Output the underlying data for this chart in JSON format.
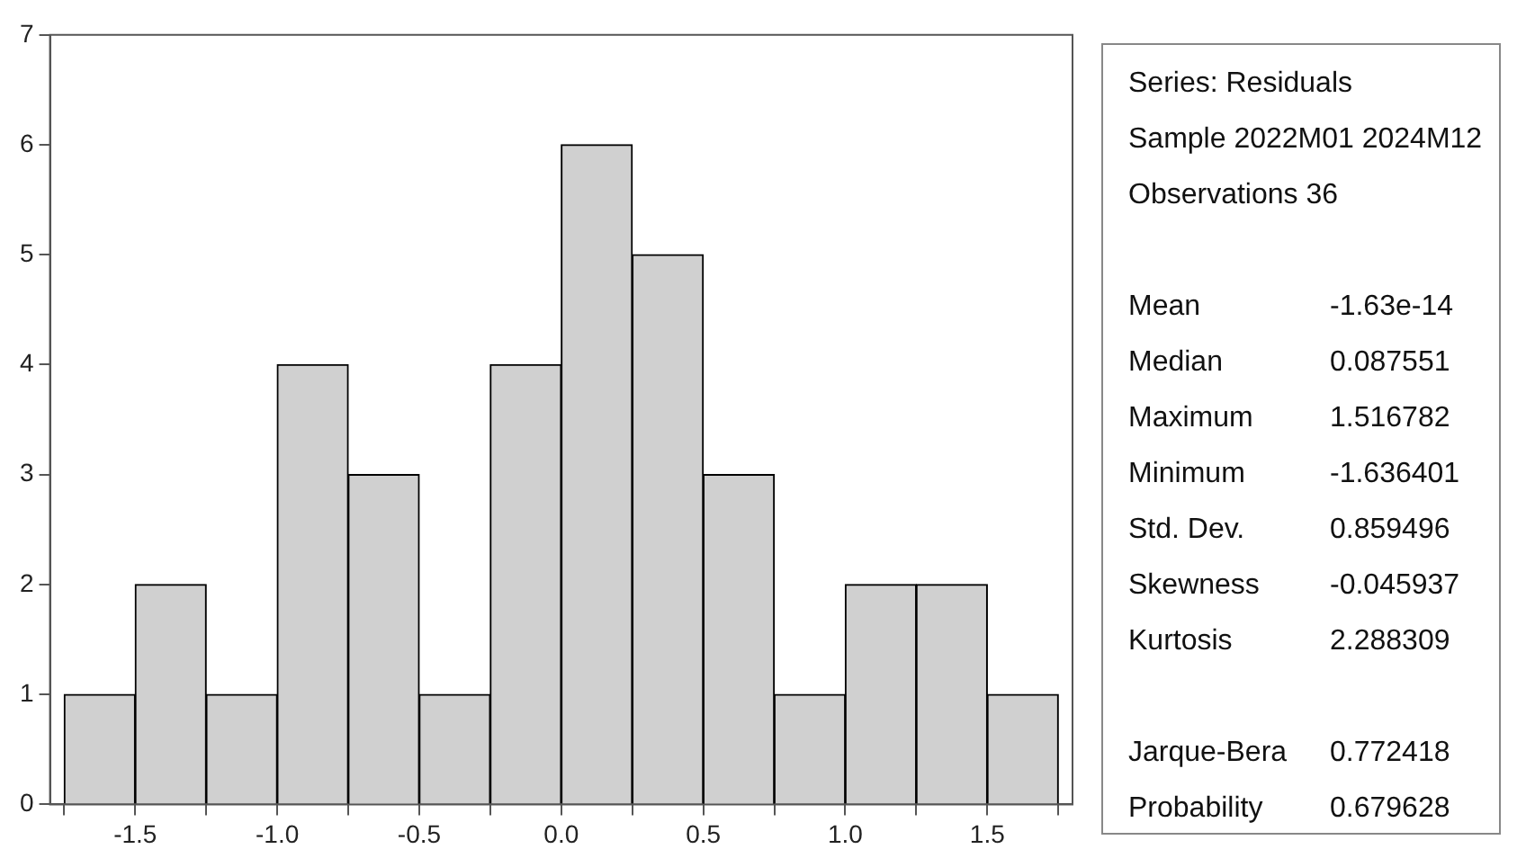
{
  "chart_data": {
    "type": "histogram",
    "bins": [
      -1.75,
      -1.5,
      -1.25,
      -1.0,
      -0.75,
      -0.5,
      -0.25,
      0.0,
      0.25,
      0.5,
      0.75,
      1.0,
      1.25,
      1.5,
      1.75
    ],
    "values": [
      1,
      2,
      1,
      4,
      3,
      1,
      4,
      6,
      5,
      3,
      1,
      2,
      2,
      1
    ],
    "color": "#d0d0d0",
    "xlim": [
      -1.8,
      1.8
    ],
    "xticks": [
      {
        "value": -1.75,
        "label": null
      },
      -1.5,
      {
        "value": -1.25,
        "label": null
      },
      {
        "value": -1.0,
        "label": "-1.0"
      },
      {
        "value": -0.75,
        "label": null
      },
      -0.5,
      {
        "value": -0.25,
        "label": null
      },
      {
        "value": 0.0,
        "label": "0.0"
      },
      {
        "value": 0.25,
        "label": null
      },
      0.5,
      {
        "value": 0.75,
        "label": null
      },
      {
        "value": 1.0,
        "label": "1.0"
      },
      {
        "value": 1.25,
        "label": null
      },
      1.5,
      {
        "value": 1.75,
        "label": null
      }
    ],
    "ylim": [
      0,
      7
    ],
    "yticks": [
      0,
      1,
      2,
      3,
      4,
      5,
      6,
      7
    ],
    "grid": false,
    "legend": false,
    "annotations": [
      "Series: Residuals",
      "Sample 2022M01 2024M12",
      "Observations 36",
      "Mean",
      "-1.63e-14",
      "Median",
      "0.087551",
      "Maximum",
      "1.516782",
      "Minimum",
      "-1.636401",
      "Std. Dev.",
      "0.859496",
      "Skewness",
      "-0.045937",
      "Kurtosis",
      "2.288309",
      "Jarque-Bera",
      "0.772418",
      "Probability",
      "0.679628"
    ]
  }
}
